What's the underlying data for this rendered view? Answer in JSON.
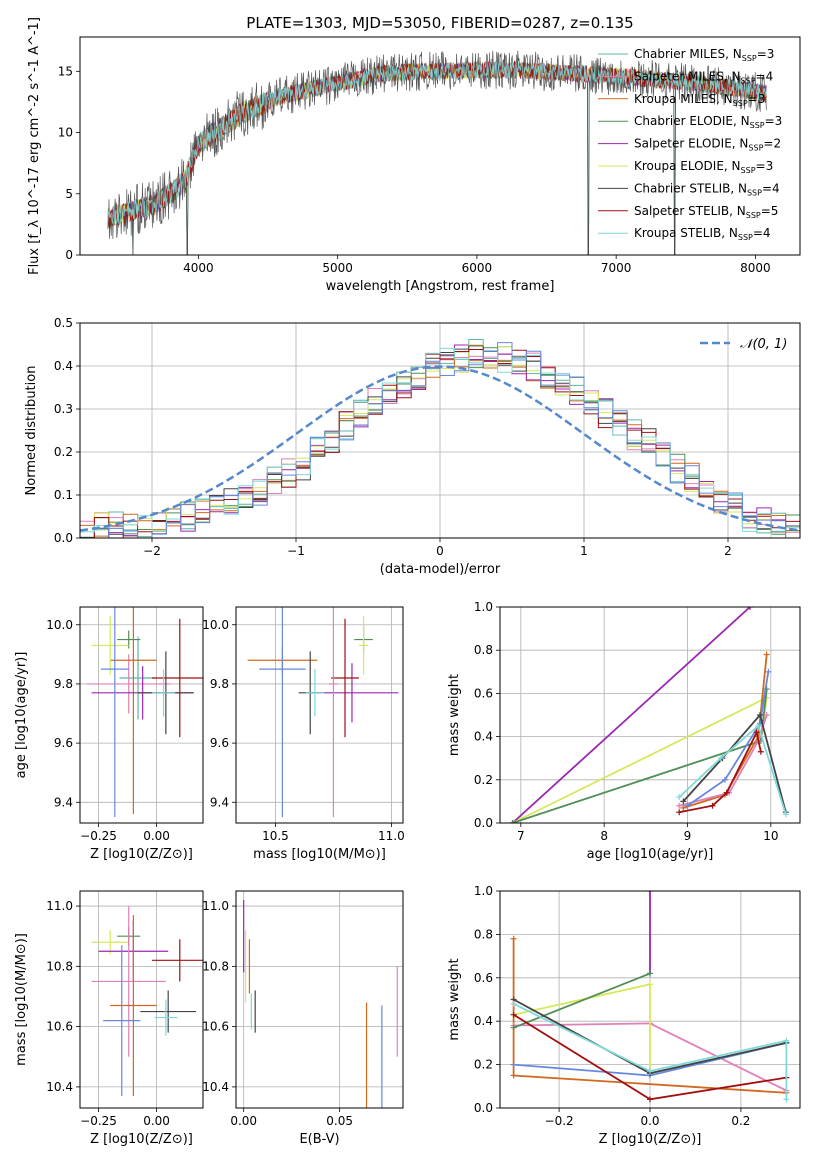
{
  "title": "PLATE=1303, MJD=53050, FIBERID=0287, z=0.135",
  "colors": {
    "Chabrier MILES": "#5bb6a6",
    "Salpeter MILES": "#e07fb8",
    "Kroupa MILES": "#d2691e",
    "Chabrier ELODIE": "#4f8f55",
    "Salpeter ELODIE": "#9a27b0",
    "Kroupa ELODIE": "#d7e85a",
    "Chabrier STELIB": "#444444",
    "Salpeter STELIB": "#a01010",
    "Kroupa STELIB": "#80d8d8",
    "blue": "#6688dd",
    "gauss": "#5588cc"
  },
  "chart_data": [
    {
      "id": "spectrum",
      "type": "line",
      "xlabel": "wavelength [Angstrom, rest frame]",
      "ylabel": "Flux [f_λ 10^-17 erg cm^-2 s^-1 A^-1]",
      "xlim": [
        3150,
        8320
      ],
      "ylim": [
        0,
        17.8
      ],
      "xticks": [
        4000,
        5000,
        6000,
        7000,
        8000
      ],
      "yticks": [
        0,
        5,
        10,
        15
      ],
      "legend_position": "upper right",
      "legend": [
        "Chabrier MILES, N_SSP=3",
        "Salpeter MILES, N_SSP=4",
        "Kroupa MILES, N_SSP=3",
        "Chabrier ELODIE, N_SSP=3",
        "Salpeter ELODIE, N_SSP=2",
        "Kroupa ELODIE, N_SSP=3",
        "Chabrier STELIB, N_SSP=4",
        "Salpeter STELIB, N_SSP=5",
        "Kroupa STELIB, N_SSP=4"
      ],
      "legend_series": [
        "Chabrier MILES",
        "Salpeter MILES",
        "Kroupa MILES",
        "Chabrier ELODIE",
        "Salpeter ELODIE",
        "Kroupa ELODIE",
        "Chabrier STELIB",
        "Salpeter STELIB",
        "Kroupa STELIB"
      ],
      "continuum": {
        "x": [
          3350,
          3700,
          3900,
          4000,
          4300,
          4600,
          5000,
          5300,
          5600,
          6000,
          6300,
          6600,
          7000,
          7300,
          7600,
          8080
        ],
        "y": [
          3.0,
          4.2,
          6.0,
          9.0,
          11.5,
          13.0,
          14.0,
          14.8,
          15.0,
          15.1,
          15.1,
          14.9,
          14.6,
          14.3,
          14.0,
          13.2
        ]
      },
      "dips": [
        {
          "x": 3530,
          "y": 0
        },
        {
          "x": 3920,
          "y": 0
        },
        {
          "x": 6800,
          "y": 0
        },
        {
          "x": 7420,
          "y": 0
        }
      ]
    },
    {
      "id": "residuals",
      "type": "histogram",
      "xlabel": "(data-model)/error",
      "ylabel": "Normed distribution",
      "xlim": [
        -2.5,
        2.5
      ],
      "ylim": [
        0,
        0.5
      ],
      "xticks": [
        -2,
        -1,
        0,
        1,
        2
      ],
      "yticks": [
        0.0,
        0.1,
        0.2,
        0.3,
        0.4,
        0.5
      ],
      "legend": [
        "𝒩(0, 1)"
      ],
      "bin_width": 0.1,
      "base": [
        0.02,
        0.03,
        0.03,
        0.03,
        0.02,
        0.03,
        0.04,
        0.05,
        0.06,
        0.07,
        0.09,
        0.1,
        0.11,
        0.13,
        0.15,
        0.17,
        0.2,
        0.23,
        0.26,
        0.29,
        0.32,
        0.34,
        0.36,
        0.38,
        0.4,
        0.41,
        0.42,
        0.43,
        0.43,
        0.42,
        0.41,
        0.4,
        0.38,
        0.36,
        0.34,
        0.32,
        0.29,
        0.27,
        0.24,
        0.22,
        0.19,
        0.16,
        0.14,
        0.11,
        0.09,
        0.07,
        0.05,
        0.04,
        0.03,
        0.02
      ]
    },
    {
      "id": "age_vs_Z",
      "type": "errorbar",
      "xlabel": "Z [log10(Z/Z⊙)]",
      "ylabel": "age  [log10(age/yr)]",
      "xlim": [
        -0.33,
        0.2
      ],
      "ylim": [
        9.33,
        10.06
      ],
      "xticks": [
        -0.25,
        0.0
      ],
      "xticklabels": [
        "−0.25",
        "0.00"
      ],
      "yticks": [
        9.4,
        9.6,
        9.8,
        10.0
      ],
      "points": [
        {
          "series": "Chabrier MILES",
          "x": -0.08,
          "y": 9.82,
          "xe": 0.08,
          "ye": 0.14
        },
        {
          "series": "Salpeter MILES",
          "x": -0.12,
          "y": 9.8,
          "xe": 0.18,
          "ye": 0.1
        },
        {
          "series": "Kroupa MILES",
          "x": -0.1,
          "y": 9.88,
          "xe": 0.1,
          "ye": 0.52
        },
        {
          "series": "Chabrier ELODIE",
          "x": -0.12,
          "y": 9.95,
          "xe": 0.05,
          "ye": 0.03
        },
        {
          "series": "Salpeter ELODIE",
          "x": -0.06,
          "y": 9.77,
          "xe": 0.22,
          "ye": 0.09
        },
        {
          "series": "Kroupa ELODIE",
          "x": -0.2,
          "y": 9.93,
          "xe": 0.08,
          "ye": 0.1
        },
        {
          "series": "Chabrier STELIB",
          "x": 0.04,
          "y": 9.77,
          "xe": 0.12,
          "ye": 0.14
        },
        {
          "series": "Salpeter STELIB",
          "x": 0.1,
          "y": 9.82,
          "xe": 0.12,
          "ye": 0.2
        },
        {
          "series": "Kroupa STELIB",
          "x": 0.03,
          "y": 9.77,
          "xe": 0.05,
          "ye": 0.08
        },
        {
          "series": "blue",
          "x": -0.18,
          "y": 9.85,
          "xe": 0.06,
          "ye": 0.5
        }
      ]
    },
    {
      "id": "age_vs_mass",
      "type": "errorbar",
      "xlabel": "mass [log10(M/M⊙)]",
      "ylabel": "",
      "xlim": [
        10.33,
        11.05
      ],
      "ylim": [
        9.33,
        10.06
      ],
      "xticks": [
        10.5,
        11.0
      ],
      "xticklabels": [
        "10.5",
        "11.0"
      ],
      "yticks": [
        9.4,
        9.6,
        9.8,
        10.0
      ],
      "points": [
        {
          "series": "Kroupa MILES",
          "x": 10.53,
          "y": 9.88,
          "xe": 0.15,
          "ye": 0.05
        },
        {
          "series": "blue",
          "x": 10.53,
          "y": 9.85,
          "xe": 0.1,
          "ye": 0.5
        },
        {
          "series": "Chabrier ELODIE",
          "x": 10.88,
          "y": 9.95,
          "xe": 0.04,
          "ye": 0.05
        },
        {
          "series": "Kroupa ELODIE",
          "x": 10.88,
          "y": 9.93,
          "xe": 0.02,
          "ye": 0.1
        },
        {
          "series": "Salpeter ELODIE",
          "x": 10.83,
          "y": 9.77,
          "xe": 0.2,
          "ye": 0.1
        },
        {
          "series": "Salpeter STELIB",
          "x": 10.8,
          "y": 9.82,
          "xe": 0.06,
          "ye": 0.2
        },
        {
          "series": "Chabrier STELIB",
          "x": 10.65,
          "y": 9.77,
          "xe": 0.05,
          "ye": 0.14
        },
        {
          "series": "Salpeter MILES",
          "x": 10.75,
          "y": 9.8,
          "xe": 0.02,
          "ye": 0.45
        },
        {
          "series": "Kroupa STELIB",
          "x": 10.67,
          "y": 9.77,
          "xe": 0.04,
          "ye": 0.08
        }
      ]
    },
    {
      "id": "weight_vs_age",
      "type": "line",
      "xlabel": "age  [log10(age/yr)]",
      "ylabel": "mass weight",
      "xlim": [
        6.75,
        10.35
      ],
      "ylim": [
        0,
        1
      ],
      "xticks": [
        7,
        8,
        9,
        10
      ],
      "yticks": [
        0.0,
        0.2,
        0.4,
        0.6,
        0.8,
        1.0
      ],
      "series": [
        {
          "series": "Salpeter ELODIE",
          "x": [
            6.9,
            9.75
          ],
          "y": [
            0,
            1.0
          ]
        },
        {
          "series": "Kroupa ELODIE",
          "x": [
            6.9,
            9.95,
            9.88
          ],
          "y": [
            0,
            0.58,
            0.38
          ]
        },
        {
          "series": "Chabrier ELODIE",
          "x": [
            6.9,
            9.88,
            9.95
          ],
          "y": [
            0,
            0.38,
            0.62
          ]
        },
        {
          "series": "Kroupa MILES",
          "x": [
            8.95,
            9.45,
            9.85,
            9.95
          ],
          "y": [
            0.07,
            0.13,
            0.4,
            0.78
          ]
        },
        {
          "series": "Salpeter MILES",
          "x": [
            8.9,
            9.5,
            9.85,
            9.95
          ],
          "y": [
            0.08,
            0.14,
            0.38,
            0.5
          ]
        },
        {
          "series": "blue",
          "x": [
            9.0,
            9.45,
            9.87,
            9.97
          ],
          "y": [
            0.08,
            0.2,
            0.46,
            0.7
          ]
        },
        {
          "series": "Chabrier STELIB",
          "x": [
            8.95,
            9.42,
            9.87,
            10.18
          ],
          "y": [
            0.1,
            0.3,
            0.5,
            0.05
          ]
        },
        {
          "series": "Kroupa STELIB",
          "x": [
            8.9,
            9.4,
            9.85,
            10.18
          ],
          "y": [
            0.12,
            0.3,
            0.45,
            0.04
          ]
        },
        {
          "series": "Salpeter STELIB",
          "x": [
            8.9,
            9.3,
            9.47,
            9.83,
            9.88
          ],
          "y": [
            0.05,
            0.08,
            0.14,
            0.42,
            0.33
          ]
        }
      ]
    },
    {
      "id": "mass_vs_Z",
      "type": "errorbar",
      "xlabel": "Z [log10(Z/Z⊙)]",
      "ylabel": "mass [log10(M/M⊙)]",
      "xlim": [
        -0.33,
        0.2
      ],
      "ylim": [
        10.33,
        11.05
      ],
      "xticks": [
        -0.25,
        0.0
      ],
      "xticklabels": [
        "−0.25",
        "0.00"
      ],
      "yticks": [
        10.4,
        10.6,
        10.8,
        11.0
      ],
      "points": [
        {
          "series": "Chabrier ELODIE",
          "x": -0.12,
          "y": 10.9,
          "xe": 0.05,
          "ye": 0.03
        },
        {
          "series": "Kroupa ELODIE",
          "x": -0.2,
          "y": 10.88,
          "xe": 0.08,
          "ye": 0.04
        },
        {
          "series": "Salpeter ELODIE",
          "x": -0.1,
          "y": 10.85,
          "xe": 0.15,
          "ye": 0.1
        },
        {
          "series": "Salpeter MILES",
          "x": -0.12,
          "y": 10.75,
          "xe": 0.16,
          "ye": 0.25
        },
        {
          "series": "Kroupa MILES",
          "x": -0.1,
          "y": 10.67,
          "xe": 0.1,
          "ye": 0.3
        },
        {
          "series": "blue",
          "x": -0.15,
          "y": 10.62,
          "xe": 0.08,
          "ye": 0.25
        },
        {
          "series": "Chabrier STELIB",
          "x": 0.05,
          "y": 10.65,
          "xe": 0.12,
          "ye": 0.07
        },
        {
          "series": "Salpeter STELIB",
          "x": 0.1,
          "y": 10.82,
          "xe": 0.12,
          "ye": 0.07
        },
        {
          "series": "Kroupa STELIB",
          "x": 0.04,
          "y": 10.63,
          "xe": 0.05,
          "ye": 0.06
        }
      ]
    },
    {
      "id": "mass_vs_EBV",
      "type": "errorbar",
      "xlabel": "E(B-V)",
      "ylabel": "",
      "xlim": [
        -0.004,
        0.083
      ],
      "ylim": [
        10.33,
        11.05
      ],
      "xticks": [
        0.0,
        0.05
      ],
      "xticklabels": [
        "0.00",
        "0.05"
      ],
      "yticks": [
        10.4,
        10.6,
        10.8,
        11.0
      ],
      "points": [
        {
          "series": "Salpeter ELODIE",
          "x": 0.0,
          "y": 10.9,
          "xe": 0,
          "ye": 0.12
        },
        {
          "series": "Kroupa ELODIE",
          "x": 0.001,
          "y": 10.8,
          "xe": 0,
          "ye": 0.12
        },
        {
          "series": "Kroupa MILES",
          "x": 0.003,
          "y": 10.8,
          "xe": 0,
          "ye": 0.09
        },
        {
          "series": "Kroupa STELIB",
          "x": 0.004,
          "y": 10.65,
          "xe": 0,
          "ye": 0.06
        },
        {
          "series": "Chabrier STELIB",
          "x": 0.006,
          "y": 10.65,
          "xe": 0,
          "ye": 0.07
        },
        {
          "series": "Kroupa MILES",
          "x": 0.064,
          "y": 10.5,
          "xe": 0,
          "ye": 0.18
        },
        {
          "series": "blue",
          "x": 0.072,
          "y": 10.5,
          "xe": 0,
          "ye": 0.17
        },
        {
          "series": "Salpeter MILES",
          "x": 0.08,
          "y": 10.65,
          "xe": 0,
          "ye": 0.15
        }
      ]
    },
    {
      "id": "weight_vs_Z",
      "type": "line",
      "xlabel": "Z [log10(Z/Z⊙)]",
      "ylabel": "mass weight",
      "xlim": [
        -0.33,
        0.33
      ],
      "ylim": [
        0,
        1
      ],
      "xticks": [
        -0.2,
        0.0,
        0.2
      ],
      "xticklabels": [
        "−0.2",
        "0.0",
        "0.2"
      ],
      "yticks": [
        0.0,
        0.2,
        0.4,
        0.6,
        0.8,
        1.0
      ],
      "series": [
        {
          "series": "Salpeter ELODIE",
          "x": [
            0.0,
            0.0
          ],
          "y": [
            0.62,
            1.0
          ]
        },
        {
          "series": "Kroupa MILES",
          "x": [
            -0.3,
            -0.3,
            0.3
          ],
          "y": [
            0.78,
            0.15,
            0.07
          ]
        },
        {
          "series": "Salpeter MILES",
          "x": [
            -0.3,
            0.0,
            0.3
          ],
          "y": [
            0.38,
            0.39,
            0.08
          ]
        },
        {
          "series": "Kroupa ELODIE",
          "x": [
            -0.3,
            0.0,
            0.0
          ],
          "y": [
            0.43,
            0.57,
            0.16
          ]
        },
        {
          "series": "Chabrier ELODIE",
          "x": [
            -0.3,
            0.0
          ],
          "y": [
            0.37,
            0.62
          ]
        },
        {
          "series": "blue",
          "x": [
            -0.3,
            0.0,
            0.3
          ],
          "y": [
            0.2,
            0.15,
            0.3
          ]
        },
        {
          "series": "Chabrier STELIB",
          "x": [
            -0.3,
            0.0,
            0.3
          ],
          "y": [
            0.5,
            0.16,
            0.3
          ]
        },
        {
          "series": "Salpeter STELIB",
          "x": [
            -0.3,
            0.0,
            0.3
          ],
          "y": [
            0.43,
            0.04,
            0.14
          ]
        },
        {
          "series": "Kroupa STELIB",
          "x": [
            -0.3,
            0.0,
            0.3,
            0.3
          ],
          "y": [
            0.48,
            0.17,
            0.31,
            0.04
          ]
        }
      ]
    }
  ]
}
